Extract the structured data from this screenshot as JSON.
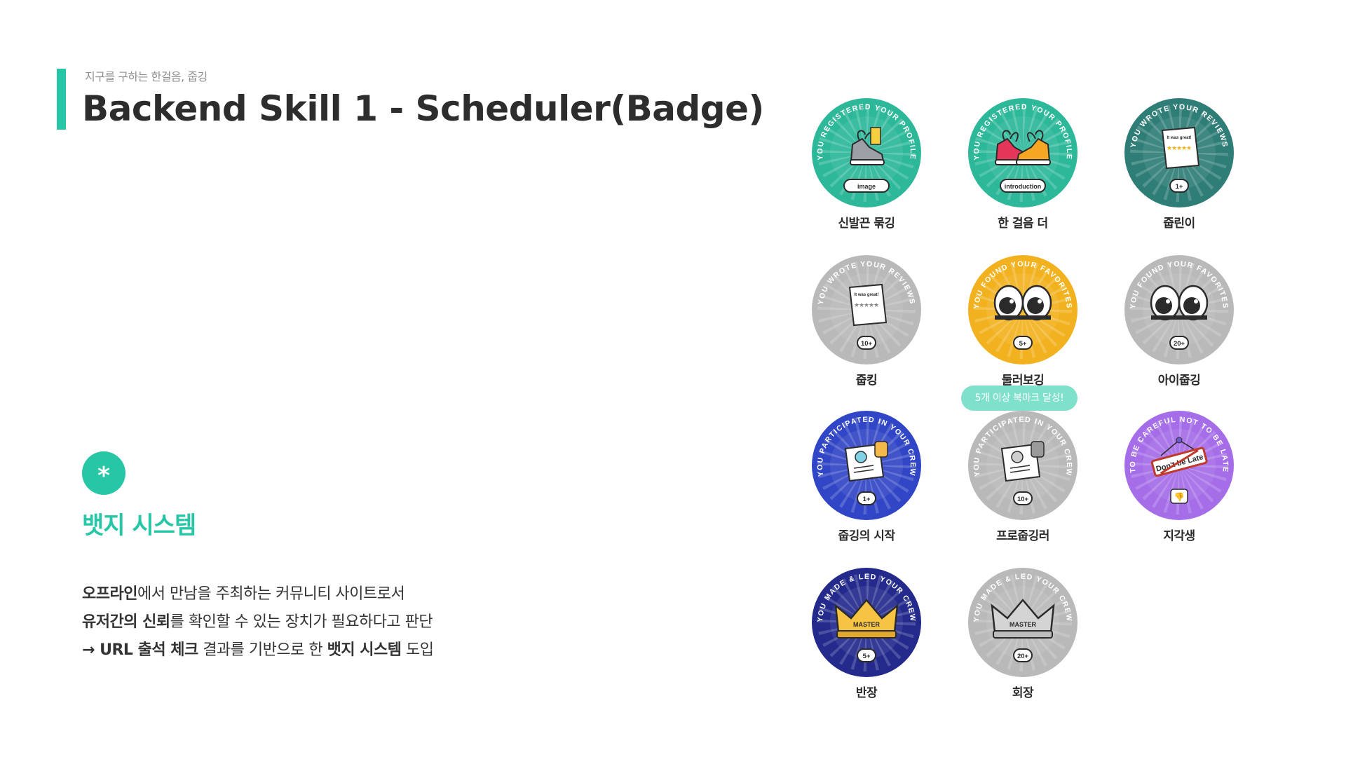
{
  "header": {
    "subtitle": "지구를 구하는 한걸음, 줍깅",
    "title": "Backend Skill 1 - Scheduler(Badge)"
  },
  "section": {
    "icon": "asterisk-icon",
    "heading": "뱃지 시스템"
  },
  "description": {
    "line1": {
      "bold": "오프라인",
      "rest": "에서 만남을 주최하는 커뮤니티 사이트로서"
    },
    "line2": {
      "bold": "유저간의 신뢰",
      "rest": "를 확인할 수 있는 장치가 필요하다고 판단"
    },
    "line3": {
      "prefix": "→ URL ",
      "bold1": "출석 체크",
      "mid": " 결과를 기반으로 한 ",
      "bold2": "뱃지 시스템",
      "suffix": " 도입"
    }
  },
  "tooltip": "5개 이상 북마크 달성!",
  "badges": [
    {
      "label": "신발끈 묶깅",
      "ring_text": "YOU REGISTERED YOUR PROFILE",
      "tag": "image",
      "color": "#2cb899",
      "icon": "sneaker-icon",
      "locked": false
    },
    {
      "label": "한 걸음 더",
      "ring_text": "YOU REGISTERED YOUR PROFILE",
      "tag": "introduction",
      "color": "#2cb899",
      "icon": "sneakers-pair-icon",
      "locked": false
    },
    {
      "label": "줍린이",
      "ring_text": "YOU WROTE YOUR REVIEWS",
      "tag": "1+",
      "color": "#2f7d77",
      "icon": "review-scroll-icon",
      "locked": false
    },
    {
      "label": "줍킹",
      "ring_text": "YOU WROTE YOUR REVIEWS",
      "tag": "10+",
      "color": "#b9b9b9",
      "icon": "review-scroll-icon",
      "locked": true
    },
    {
      "label": "둘러보깅",
      "ring_text": "YOU FOUND YOUR FAVORITES",
      "tag": "5+",
      "color": "#f2b21f",
      "icon": "eyes-icon",
      "locked": false
    },
    {
      "label": "아이줍깅",
      "ring_text": "YOU FOUND YOUR FAVORITES",
      "tag": "20+",
      "color": "#b9b9b9",
      "icon": "eyes-icon",
      "locked": true
    },
    {
      "label": "줍깅의 시작",
      "ring_text": "YOU PARTICIPATED IN YOUR CREW",
      "tag": "1+",
      "color": "#3146c6",
      "icon": "certificate-icon",
      "locked": false
    },
    {
      "label": "프로줍깅러",
      "ring_text": "YOU PARTICIPATED IN YOUR CREW",
      "tag": "10+",
      "color": "#b9b9b9",
      "icon": "certificate-icon",
      "locked": true
    },
    {
      "label": "지각생",
      "ring_text": "TO BE CAREFUL NOT TO BE LATE",
      "tag": "Don't be Late",
      "color": "#a56de8",
      "icon": "late-sign-icon",
      "locked": false
    },
    {
      "label": "반장",
      "ring_text": "YOU MADE & LED YOUR CREW",
      "tag": "5+",
      "color": "#232a8c",
      "icon": "crown-icon",
      "locked": false
    },
    {
      "label": "회장",
      "ring_text": "YOU MADE & LED YOUR CREW",
      "tag": "20+",
      "color": "#b9b9b9",
      "icon": "crown-icon",
      "locked": true
    }
  ],
  "crown_text": "MASTER",
  "review_text": "It was great!"
}
